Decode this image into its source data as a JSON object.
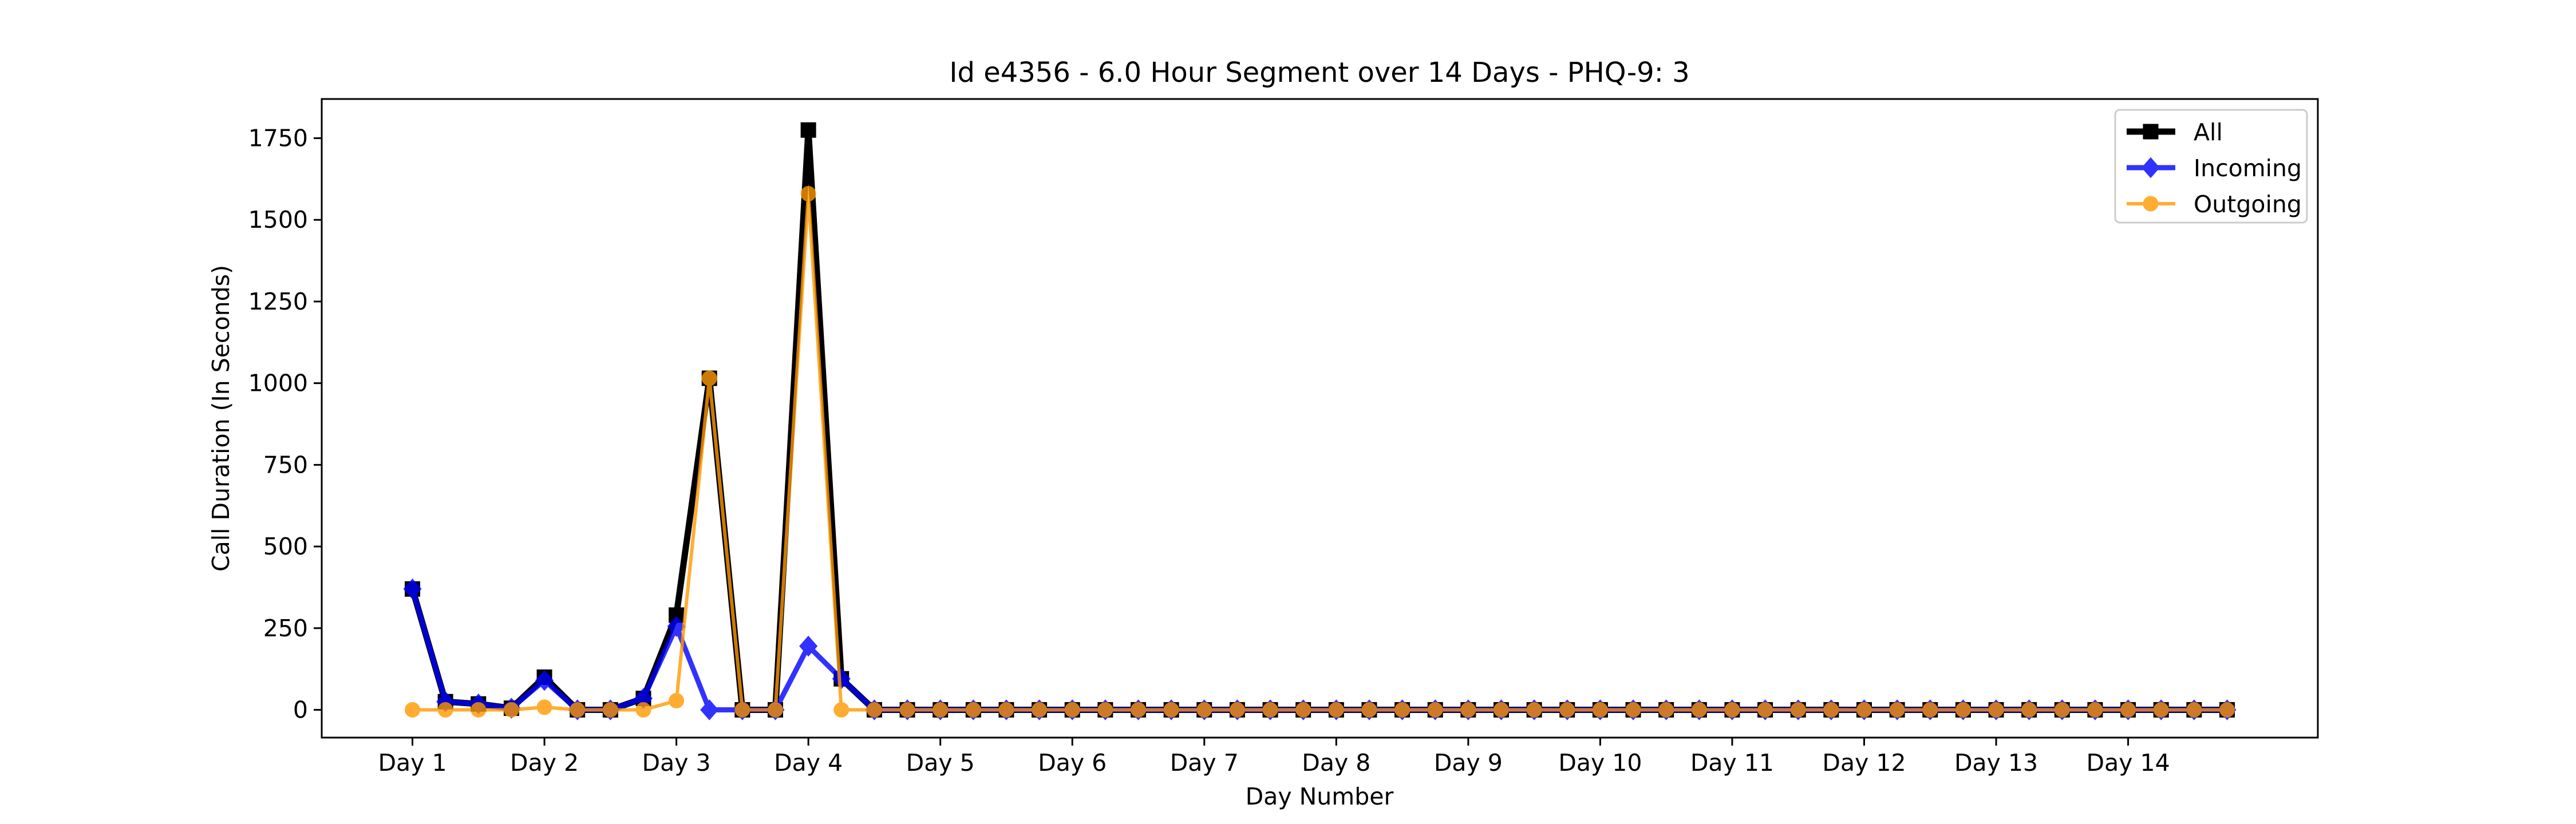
{
  "chart_data": {
    "type": "line",
    "title": "Id e4356 - 6.0 Hour Segment over 14 Days - PHQ-9: 3",
    "xlabel": "Day Number",
    "ylabel": "Call Duration (In Seconds)",
    "ylim": [
      -85,
      1870
    ],
    "xlim": [
      -2.75,
      57.75
    ],
    "x_ticks": [
      0,
      4,
      8,
      12,
      16,
      20,
      24,
      28,
      32,
      36,
      40,
      44,
      48,
      52
    ],
    "x_tick_labels": [
      "Day 1",
      "Day 2",
      "Day 3",
      "Day 4",
      "Day 5",
      "Day 6",
      "Day 7",
      "Day 8",
      "Day 9",
      "Day 10",
      "Day 11",
      "Day 12",
      "Day 13",
      "Day 14"
    ],
    "y_ticks": [
      0,
      250,
      500,
      750,
      1000,
      1250,
      1500,
      1750
    ],
    "grid": false,
    "legend_position": "top-right",
    "series": [
      {
        "name": "All",
        "color": "#000000",
        "marker": "square",
        "values": [
          370,
          25,
          18,
          5,
          100,
          0,
          0,
          35,
          290,
          1015,
          0,
          0,
          1775,
          95,
          0,
          0,
          0,
          0,
          0,
          0,
          0,
          0,
          0,
          0,
          0,
          0,
          0,
          0,
          0,
          0,
          0,
          0,
          0,
          0,
          0,
          0,
          0,
          0,
          0,
          0,
          0,
          0,
          0,
          0,
          0,
          0,
          0,
          0,
          0,
          0,
          0,
          0,
          0,
          0,
          0,
          0
        ]
      },
      {
        "name": "Incoming",
        "color": "#0000ff",
        "marker": "diamond",
        "values": [
          370,
          25,
          18,
          5,
          90,
          0,
          0,
          35,
          255,
          0,
          0,
          0,
          195,
          95,
          0,
          0,
          0,
          0,
          0,
          0,
          0,
          0,
          0,
          0,
          0,
          0,
          0,
          0,
          0,
          0,
          0,
          0,
          0,
          0,
          0,
          0,
          0,
          0,
          0,
          0,
          0,
          0,
          0,
          0,
          0,
          0,
          0,
          0,
          0,
          0,
          0,
          0,
          0,
          0,
          0,
          0
        ]
      },
      {
        "name": "Outgoing",
        "color": "#ff9900",
        "marker": "circle",
        "values": [
          0,
          0,
          0,
          0,
          8,
          0,
          0,
          0,
          28,
          1015,
          0,
          0,
          1580,
          0,
          0,
          0,
          0,
          0,
          0,
          0,
          0,
          0,
          0,
          0,
          0,
          0,
          0,
          0,
          0,
          0,
          0,
          0,
          0,
          0,
          0,
          0,
          0,
          0,
          0,
          0,
          0,
          0,
          0,
          0,
          0,
          0,
          0,
          0,
          0,
          0,
          0,
          0,
          0,
          0,
          0,
          0
        ]
      }
    ]
  }
}
